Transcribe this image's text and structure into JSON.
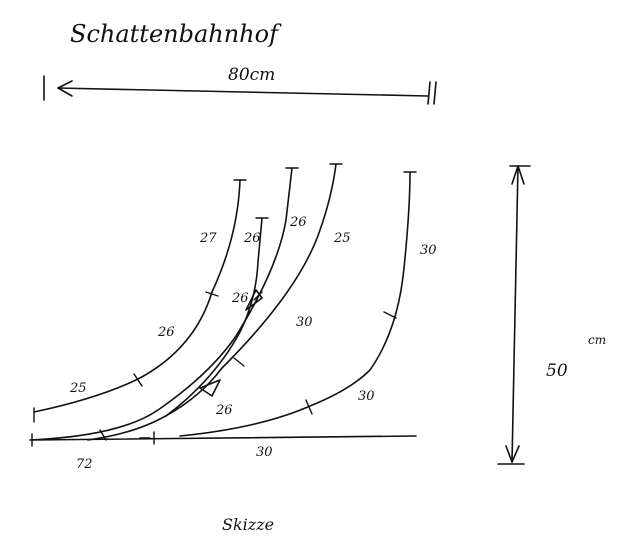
{
  "title": "Schattenbahnhof",
  "caption": "Skizze",
  "dimensions": {
    "width_label": "80cm",
    "height_value": "50",
    "height_unit": "cm"
  },
  "segment_labels": {
    "t1_bottom": "25",
    "t1_middle": "26",
    "t1_top": "27",
    "t2_top": "26",
    "t2_mid": "26",
    "t3_top": "26",
    "t4_top": "25",
    "t4_mid": "30",
    "t4_low": "26",
    "t5_top": "30",
    "t5_mid": "30",
    "t5_low": "30",
    "base_left": "72"
  }
}
